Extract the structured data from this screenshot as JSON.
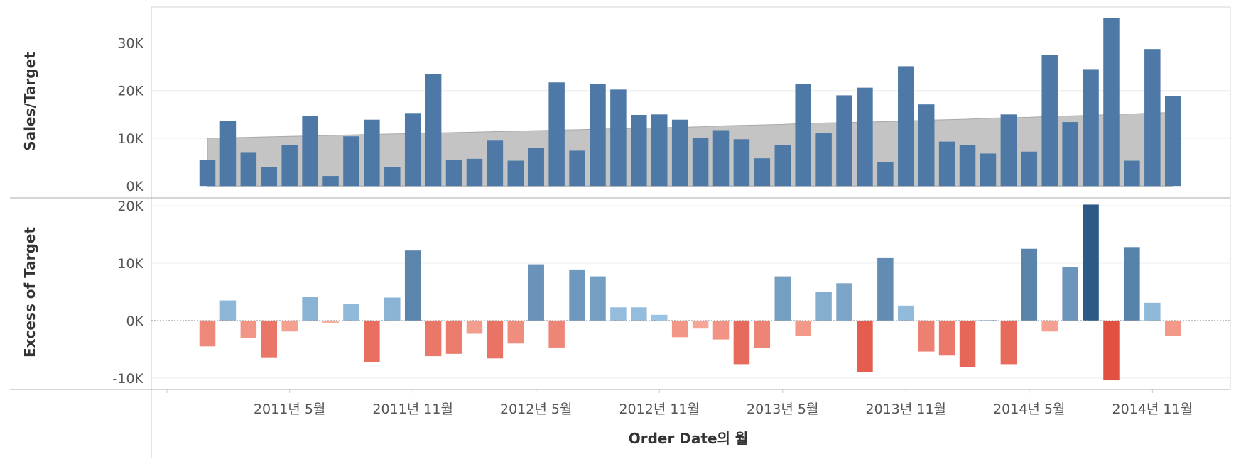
{
  "chart_data": [
    {
      "type": "bar",
      "ylabel": "Sales/Target",
      "ylim": [
        -2500,
        37500
      ],
      "y_ticks": [
        0,
        10000,
        20000,
        30000
      ],
      "y_tick_labels": [
        "0K",
        "10K",
        "20K",
        "30K"
      ],
      "x": [
        "2011-01",
        "2011-02",
        "2011-03",
        "2011-04",
        "2011-05",
        "2011-06",
        "2011-07",
        "2011-08",
        "2011-09",
        "2011-10",
        "2011-11",
        "2011-12",
        "2012-01",
        "2012-02",
        "2012-03",
        "2012-04",
        "2012-05",
        "2012-06",
        "2012-07",
        "2012-08",
        "2012-09",
        "2012-10",
        "2012-11",
        "2012-12",
        "2013-01",
        "2013-02",
        "2013-03",
        "2013-04",
        "2013-05",
        "2013-06",
        "2013-07",
        "2013-08",
        "2013-09",
        "2013-10",
        "2013-11",
        "2013-12",
        "2014-01",
        "2014-02",
        "2014-03",
        "2014-04",
        "2014-05",
        "2014-06",
        "2014-07",
        "2014-08",
        "2014-09",
        "2014-10",
        "2014-11",
        "2014-12"
      ],
      "series": [
        {
          "kind": "bar",
          "values": [
            5500,
            13700,
            7100,
            4000,
            8600,
            14600,
            2100,
            10400,
            13900,
            4000,
            15300,
            23500,
            5500,
            5700,
            9500,
            5300,
            8000,
            21700,
            7400,
            21300,
            20200,
            14900,
            15000,
            13900,
            10100,
            11700,
            9800,
            5800,
            8600,
            21300,
            11100,
            19000,
            20600,
            5000,
            25100,
            17100,
            9300,
            8600,
            6800,
            15000,
            7200,
            27400,
            13400,
            24500,
            35200,
            5300,
            28700,
            18800
          ]
        },
        {
          "kind": "area",
          "values": [
            10000,
            10100,
            10200,
            10300,
            10400,
            10500,
            10600,
            10700,
            10800,
            10900,
            11000,
            11100,
            11200,
            11300,
            11400,
            11500,
            11600,
            11700,
            11800,
            11900,
            12000,
            12100,
            12200,
            12300,
            12400,
            12600,
            12700,
            12800,
            12900,
            13100,
            13200,
            13300,
            13400,
            13500,
            13600,
            13800,
            13900,
            14000,
            14200,
            14300,
            14400,
            14600,
            14700,
            14800,
            15000,
            15100,
            15300,
            15400
          ]
        }
      ],
      "colors": {
        "bar": "#4e79a7",
        "area": "#c4c4c4",
        "area_stroke": "#a8a8a8"
      }
    },
    {
      "type": "bar",
      "ylabel": "Excess of Target",
      "ylim": [
        -12000,
        20500
      ],
      "y_ticks": [
        -10000,
        0,
        10000,
        20000
      ],
      "y_tick_labels": [
        "-10K",
        "0K",
        "10K",
        "20K"
      ],
      "x": [
        "2011-01",
        "2011-02",
        "2011-03",
        "2011-04",
        "2011-05",
        "2011-06",
        "2011-07",
        "2011-08",
        "2011-09",
        "2011-10",
        "2011-11",
        "2011-12",
        "2012-01",
        "2012-02",
        "2012-03",
        "2012-04",
        "2012-05",
        "2012-06",
        "2012-07",
        "2012-08",
        "2012-09",
        "2012-10",
        "2012-11",
        "2012-12",
        "2013-01",
        "2013-02",
        "2013-03",
        "2013-04",
        "2013-05",
        "2013-06",
        "2013-07",
        "2013-08",
        "2013-09",
        "2013-10",
        "2013-11",
        "2013-12",
        "2014-01",
        "2014-02",
        "2014-03",
        "2014-04",
        "2014-05",
        "2014-06",
        "2014-07",
        "2014-08",
        "2014-09",
        "2014-10",
        "2014-11",
        "2014-12"
      ],
      "values": [
        -4500,
        3500,
        -3000,
        -6400,
        -1900,
        4100,
        -400,
        2900,
        -7200,
        4000,
        12200,
        -6200,
        -5800,
        -2300,
        -6600,
        -4000,
        9800,
        -4700,
        8900,
        7700,
        2300,
        2300,
        1000,
        -2900,
        -1400,
        -3300,
        -7600,
        -4800,
        7700,
        -2700,
        5000,
        6500,
        -9000,
        11000,
        2600,
        -5400,
        -6100,
        -8100,
        100,
        -7600,
        12500,
        -1900,
        9300,
        20200,
        -10400,
        12800,
        3100,
        -2700
      ],
      "colors": {
        "neg_dark": "#e15041",
        "neg_light": "#f8b3a4",
        "pos_light": "#a1c9e8",
        "pos_dark": "#2d5986"
      }
    }
  ],
  "x_axis": {
    "title": "Order Date의 월",
    "ticks": [
      "2011-05",
      "2011-11",
      "2012-05",
      "2012-11",
      "2013-05",
      "2013-11",
      "2014-05",
      "2014-11"
    ],
    "tick_labels": [
      "2011년 5월",
      "2011년 11월",
      "2012년 5월",
      "2012년 11월",
      "2013년 5월",
      "2013년 11월",
      "2014년 5월",
      "2014년 11월"
    ]
  }
}
